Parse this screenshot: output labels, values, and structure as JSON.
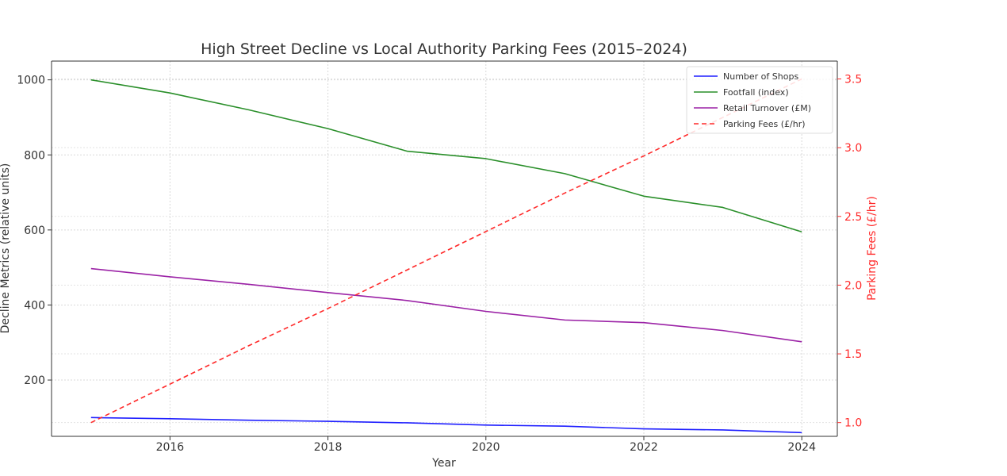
{
  "chart_data": {
    "type": "line",
    "title": "High Street Decline vs Local Authority Parking Fees (2015–2024)",
    "xlabel": "Year",
    "ylabel": "Decline Metrics (relative units)",
    "y2label": "Parking Fees (£/hr)",
    "x": [
      2015,
      2016,
      2017,
      2018,
      2019,
      2020,
      2021,
      2022,
      2023,
      2024
    ],
    "xlim": [
      2014.5,
      2024.45
    ],
    "xticks": [
      2016,
      2018,
      2020,
      2022,
      2024
    ],
    "ylim": [
      50,
      1050
    ],
    "yticks": [
      200,
      400,
      600,
      800,
      1000
    ],
    "y2lim": [
      0.9,
      3.63
    ],
    "y2ticks": [
      "1.0",
      "1.5",
      "2.0",
      "2.5",
      "3.0",
      "3.5"
    ],
    "grid": true,
    "legend_position": "top-right",
    "series": [
      {
        "name": "Number of Shops",
        "axis": "left",
        "color": "#1f1fff",
        "dash": false,
        "values": [
          100,
          97,
          93,
          90,
          86,
          80,
          77,
          70,
          67,
          60
        ]
      },
      {
        "name": "Footfall (index)",
        "axis": "left",
        "color": "#2a8f2a",
        "dash": false,
        "values": [
          1000,
          965,
          920,
          870,
          810,
          790,
          750,
          690,
          660,
          595
        ]
      },
      {
        "name": "Retail Turnover (£M)",
        "axis": "left",
        "color": "#9b22a6",
        "dash": false,
        "values": [
          497,
          475,
          455,
          433,
          412,
          383,
          360,
          353,
          332,
          302
        ]
      },
      {
        "name": "Parking Fees (£/hr)",
        "axis": "right",
        "color": "#ff2a2a",
        "dash": true,
        "values": [
          1.0,
          1.28,
          1.56,
          1.83,
          2.11,
          2.39,
          2.67,
          2.94,
          3.22,
          3.5
        ]
      }
    ]
  }
}
